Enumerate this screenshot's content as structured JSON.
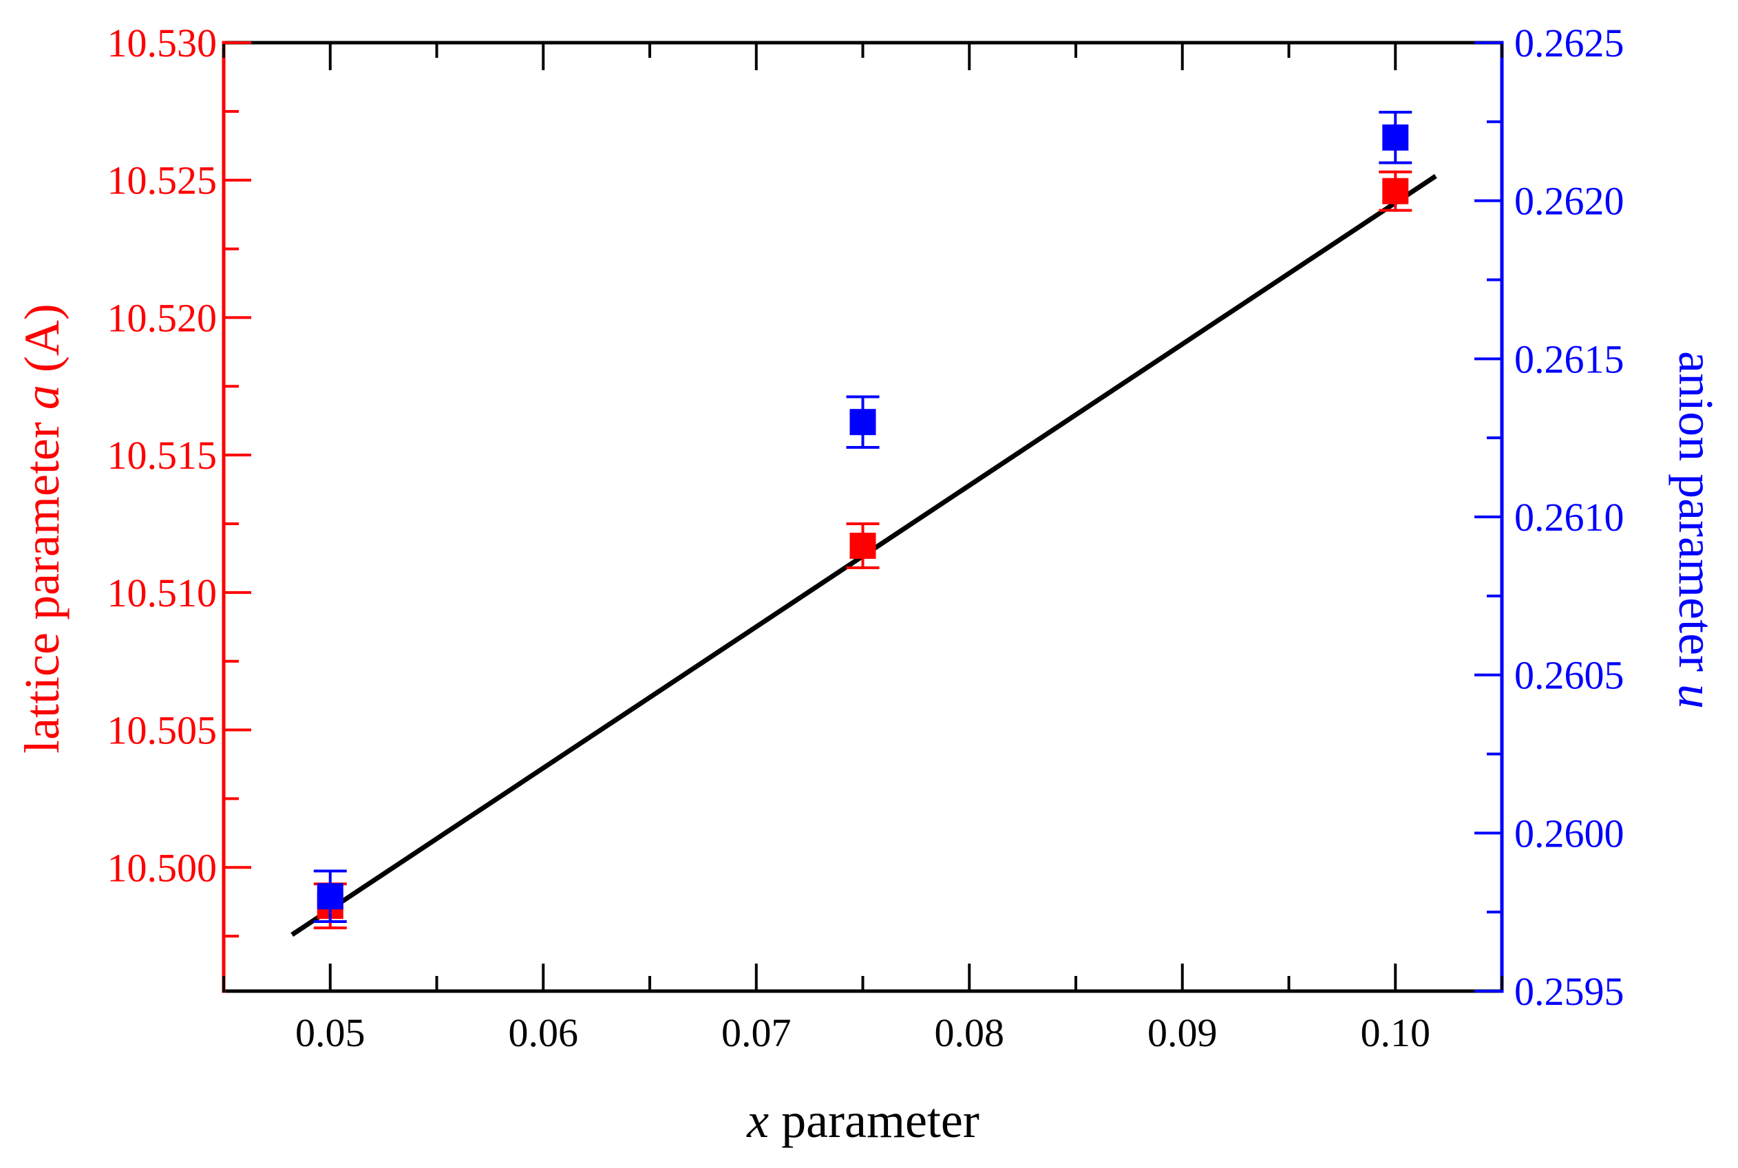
{
  "chart_data": {
    "type": "scatter",
    "x_axis": {
      "label_var": "x",
      "label_rest": " parameter",
      "range": [
        0.045,
        0.105
      ],
      "ticks": [
        0.05,
        0.06,
        0.07,
        0.08,
        0.09,
        0.1
      ],
      "tick_labels": [
        "0.05",
        "0.06",
        "0.07",
        "0.08",
        "0.09",
        "0.10"
      ],
      "minor_step": 0.005
    },
    "y_left": {
      "label_pre": "lattice parameter ",
      "label_var": "a",
      "label_post": " (A)",
      "range": [
        10.4955,
        10.53
      ],
      "ticks": [
        10.5,
        10.505,
        10.51,
        10.515,
        10.52,
        10.525,
        10.53
      ],
      "tick_labels": [
        "10.500",
        "10.505",
        "10.510",
        "10.515",
        "10.520",
        "10.525",
        "10.530"
      ],
      "minor_step": 0.0025,
      "color": "#ff0000"
    },
    "y_right": {
      "label_pre": "anion parameter ",
      "label_var": "u",
      "range": [
        0.2595,
        0.2625
      ],
      "ticks": [
        0.2595,
        0.26,
        0.2605,
        0.261,
        0.2615,
        0.262,
        0.2625
      ],
      "tick_labels": [
        "0.2595",
        "0.2600",
        "0.2605",
        "0.2610",
        "0.2615",
        "0.2620",
        "0.2625"
      ],
      "minor_step": 0.00025,
      "color": "#0000ff"
    },
    "series": [
      {
        "axis": "left",
        "color": "#ff0000",
        "marker": "square",
        "points": [
          {
            "x": 0.05,
            "y": 10.4986,
            "err": 0.0008
          },
          {
            "x": 0.075,
            "y": 10.5117,
            "err": 0.0008
          },
          {
            "x": 0.1,
            "y": 10.5246,
            "err": 0.0007
          }
        ]
      },
      {
        "axis": "right",
        "color": "#0000ff",
        "marker": "square",
        "points": [
          {
            "x": 0.05,
            "y": 0.2598,
            "err": 8e-05
          },
          {
            "x": 0.075,
            "y": 0.2613,
            "err": 8e-05
          },
          {
            "x": 0.1,
            "y": 0.2622,
            "err": 8e-05
          }
        ]
      }
    ],
    "fit_line": {
      "axis": "left",
      "color": "#000000",
      "from": {
        "x": 0.0483,
        "y": 10.4976
      },
      "to": {
        "x": 0.1018,
        "y": 10.5251
      }
    },
    "grid": false,
    "legend": "none"
  }
}
